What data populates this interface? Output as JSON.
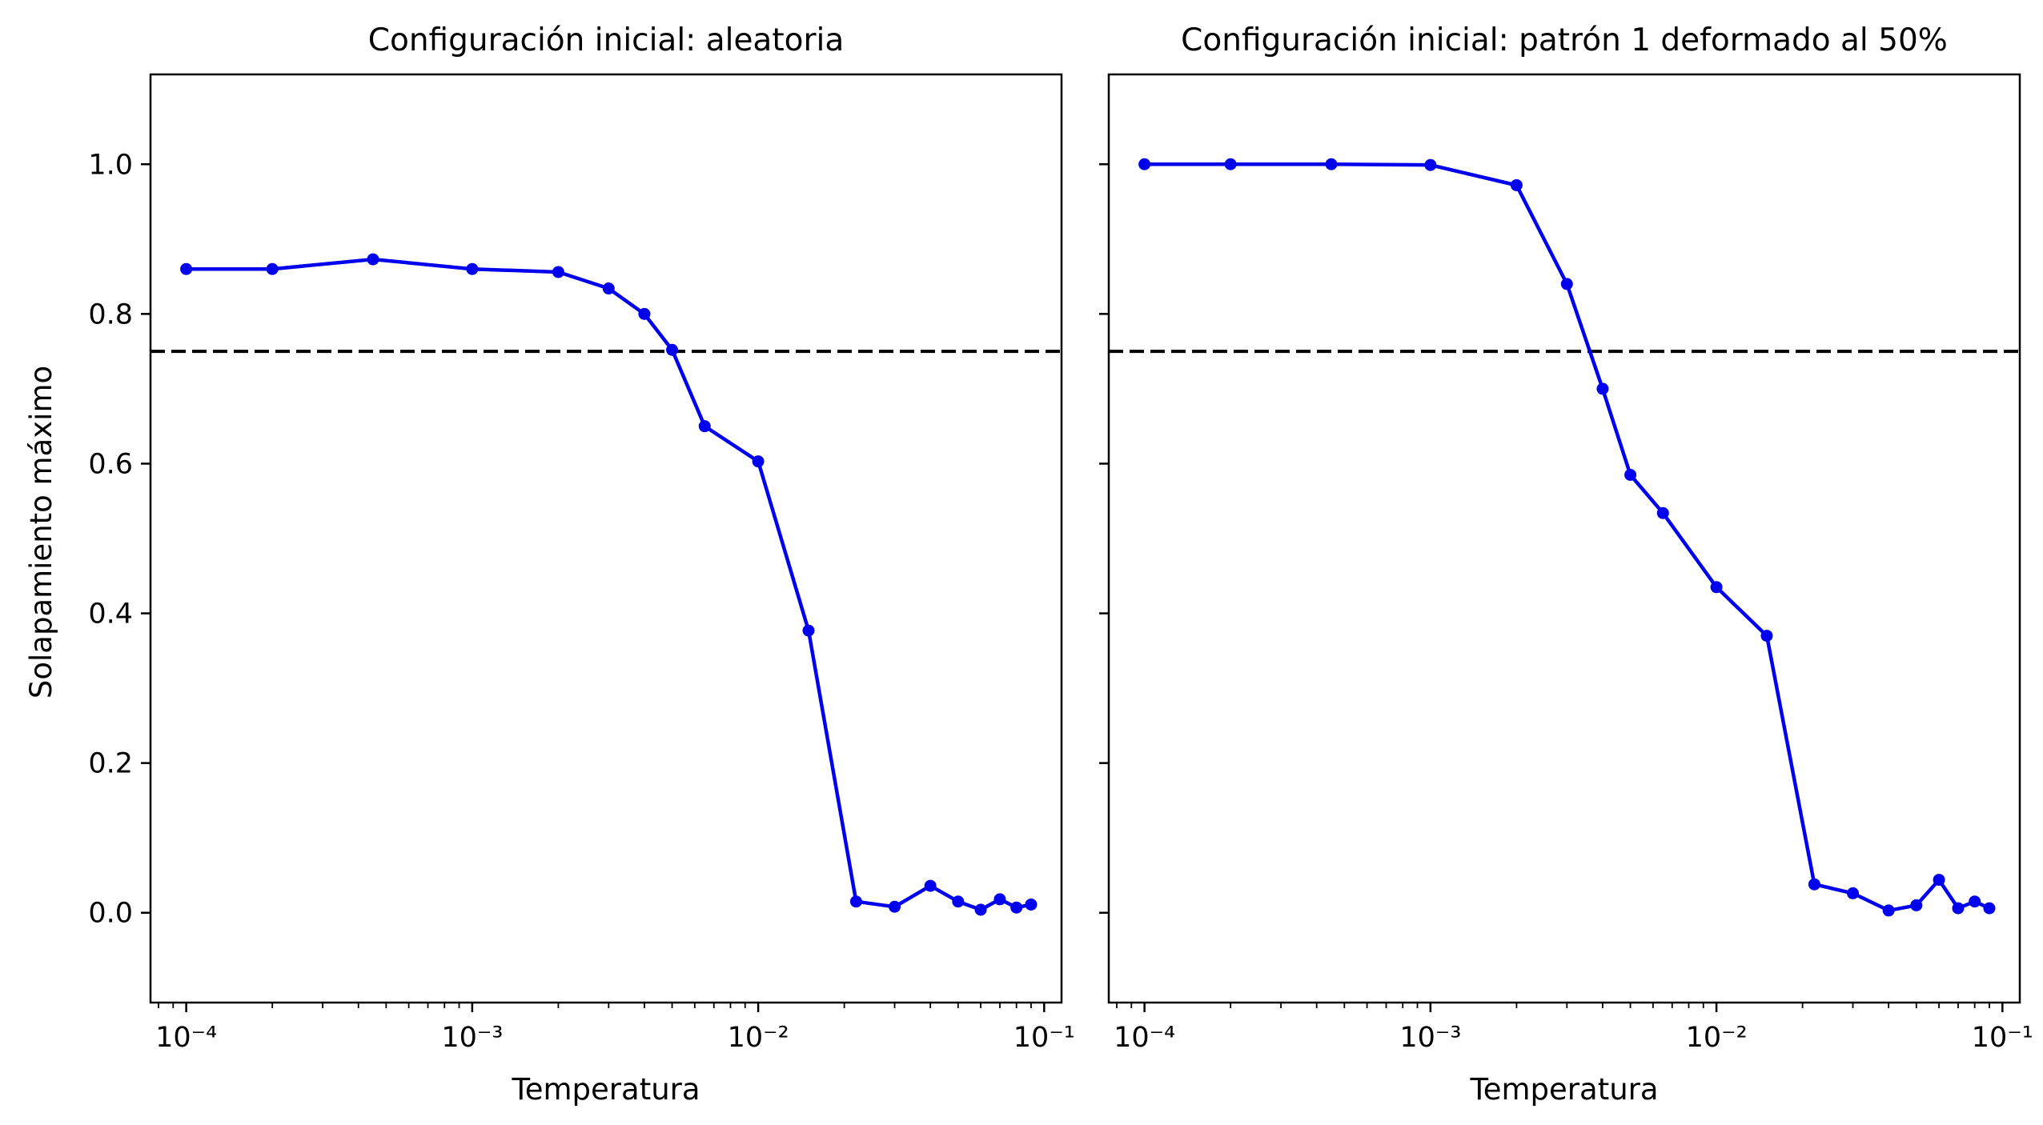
{
  "chart_data": [
    {
      "type": "line",
      "title": "Configuración inicial: aleatoria",
      "xlabel": "Temperatura",
      "ylabel": "Solapamiento máximo",
      "xscale": "log",
      "xlim": [
        7.5e-05,
        0.115
      ],
      "ylim": [
        -0.12,
        1.12
      ],
      "x_ticks": [
        {
          "value": 0.0001,
          "label": "10⁻⁴"
        },
        {
          "value": 0.001,
          "label": "10⁻³"
        },
        {
          "value": 0.01,
          "label": "10⁻²"
        },
        {
          "value": 0.1,
          "label": "10⁻¹"
        }
      ],
      "y_ticks": [
        {
          "value": 0.0,
          "label": "0.0"
        },
        {
          "value": 0.2,
          "label": "0.2"
        },
        {
          "value": 0.4,
          "label": "0.4"
        },
        {
          "value": 0.6,
          "label": "0.6"
        },
        {
          "value": 0.8,
          "label": "0.8"
        },
        {
          "value": 1.0,
          "label": "1.0"
        }
      ],
      "reference_line": {
        "y": 0.75,
        "style": "dashed",
        "color": "#000000"
      },
      "series": [
        {
          "color": "#0000ee",
          "marker": "circle",
          "x": [
            0.0001,
            0.0002,
            0.00045,
            0.001,
            0.002,
            0.003,
            0.004,
            0.005,
            0.0065,
            0.01,
            0.015,
            0.022,
            0.03,
            0.04,
            0.05,
            0.06,
            0.07,
            0.08,
            0.09
          ],
          "y": [
            0.86,
            0.86,
            0.873,
            0.86,
            0.856,
            0.834,
            0.8,
            0.752,
            0.65,
            0.603,
            0.377,
            0.015,
            0.008,
            0.036,
            0.015,
            0.004,
            0.018,
            0.007,
            0.011
          ]
        }
      ],
      "grid": false,
      "show_ytick_labels": true
    },
    {
      "type": "line",
      "title": "Configuración inicial: patrón 1 deformado al 50%",
      "xlabel": "Temperatura",
      "ylabel": "",
      "xscale": "log",
      "xlim": [
        7.5e-05,
        0.115
      ],
      "ylim": [
        -0.12,
        1.12
      ],
      "x_ticks": [
        {
          "value": 0.0001,
          "label": "10⁻⁴"
        },
        {
          "value": 0.001,
          "label": "10⁻³"
        },
        {
          "value": 0.01,
          "label": "10⁻²"
        },
        {
          "value": 0.1,
          "label": "10⁻¹"
        }
      ],
      "y_ticks": [
        {
          "value": 0.0,
          "label": ""
        },
        {
          "value": 0.2,
          "label": ""
        },
        {
          "value": 0.4,
          "label": ""
        },
        {
          "value": 0.6,
          "label": ""
        },
        {
          "value": 0.8,
          "label": ""
        },
        {
          "value": 1.0,
          "label": ""
        }
      ],
      "reference_line": {
        "y": 0.75,
        "style": "dashed",
        "color": "#000000"
      },
      "series": [
        {
          "color": "#0000ee",
          "marker": "circle",
          "x": [
            0.0001,
            0.0002,
            0.00045,
            0.001,
            0.002,
            0.003,
            0.004,
            0.005,
            0.0065,
            0.01,
            0.015,
            0.022,
            0.03,
            0.04,
            0.05,
            0.06,
            0.07,
            0.08,
            0.09
          ],
          "y": [
            1.0,
            1.0,
            1.0,
            0.999,
            0.972,
            0.84,
            0.7,
            0.585,
            0.534,
            0.435,
            0.37,
            0.038,
            0.026,
            0.003,
            0.01,
            0.044,
            0.006,
            0.015,
            0.006
          ]
        }
      ],
      "grid": false,
      "show_ytick_labels": false
    }
  ]
}
